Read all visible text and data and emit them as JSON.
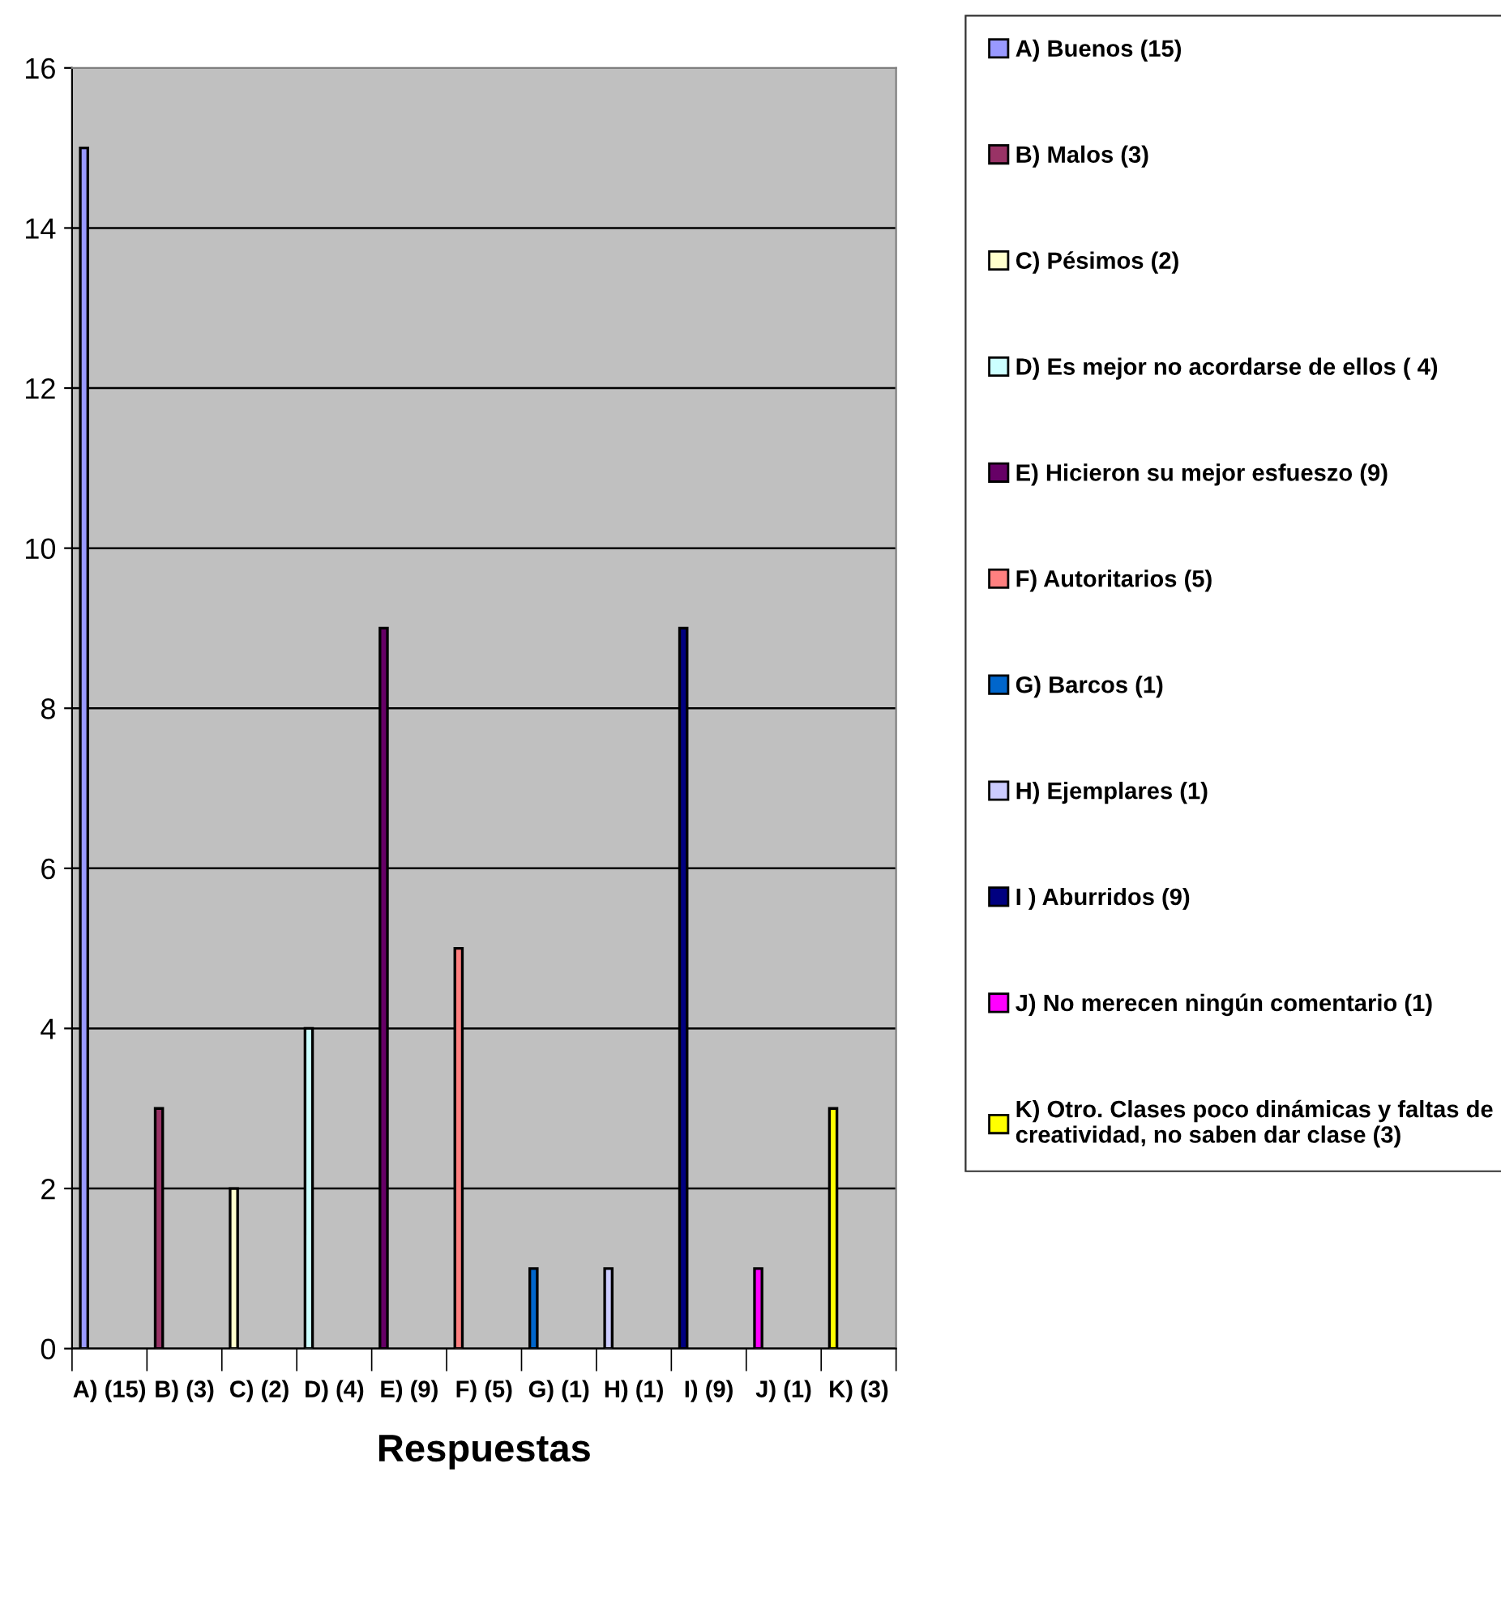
{
  "chart_data": {
    "type": "bar",
    "xlabel": "Respuestas",
    "categories": [
      "A) (15)",
      "B) (3)",
      "C) (2)",
      "D) (4)",
      "E) (9)",
      "F) (5)",
      "G) (1)",
      "H) (1)",
      "I) (9)",
      "J) (1)",
      "K) (3)"
    ],
    "series": [
      {
        "name": "A) Buenos (15)",
        "color": "#9999ff",
        "values": [
          15,
          null,
          null,
          null,
          null,
          null,
          null,
          null,
          null,
          null,
          null
        ]
      },
      {
        "name": "B) Malos (3)",
        "color": "#993366",
        "values": [
          null,
          3,
          null,
          null,
          null,
          null,
          null,
          null,
          null,
          null,
          null
        ]
      },
      {
        "name": "C) Pésimos (2)",
        "color": "#ffffcc",
        "values": [
          null,
          null,
          2,
          null,
          null,
          null,
          null,
          null,
          null,
          null,
          null
        ]
      },
      {
        "name": "D) Es mejor no acordarse de ellos ( 4)",
        "color": "#ccffff",
        "values": [
          null,
          null,
          null,
          4,
          null,
          null,
          null,
          null,
          null,
          null,
          null
        ]
      },
      {
        "name": "E) Hicieron su mejor esfueszo (9)",
        "color": "#660066",
        "values": [
          null,
          null,
          null,
          null,
          9,
          null,
          null,
          null,
          null,
          null,
          null
        ]
      },
      {
        "name": "F) Autoritarios (5)",
        "color": "#ff8080",
        "values": [
          null,
          null,
          null,
          null,
          null,
          5,
          null,
          null,
          null,
          null,
          null
        ]
      },
      {
        "name": "G) Barcos (1)",
        "color": "#0066cc",
        "values": [
          null,
          null,
          null,
          null,
          null,
          null,
          1,
          null,
          null,
          null,
          null
        ]
      },
      {
        "name": "H) Ejemplares (1)",
        "color": "#ccccff",
        "values": [
          null,
          null,
          null,
          null,
          null,
          null,
          null,
          1,
          null,
          null,
          null
        ]
      },
      {
        "name": "I ) Aburridos (9)",
        "color": "#000080",
        "values": [
          null,
          null,
          null,
          null,
          null,
          null,
          null,
          null,
          9,
          null,
          null
        ]
      },
      {
        "name": "J) No merecen ningún comentario (1)",
        "color": "#ff00ff",
        "values": [
          null,
          null,
          null,
          null,
          null,
          null,
          null,
          null,
          null,
          1,
          null
        ]
      },
      {
        "name": "K) Otro. Clases poco dinámicas y faltas de creatividad, no saben dar clase (3)",
        "color": "#ffff00",
        "values": [
          null,
          null,
          null,
          null,
          null,
          null,
          null,
          null,
          null,
          null,
          3
        ]
      }
    ],
    "ylim": [
      0,
      16
    ],
    "yticks": [
      0,
      2,
      4,
      6,
      8,
      10,
      12,
      14,
      16
    ],
    "grid": "y",
    "legend": "right"
  }
}
